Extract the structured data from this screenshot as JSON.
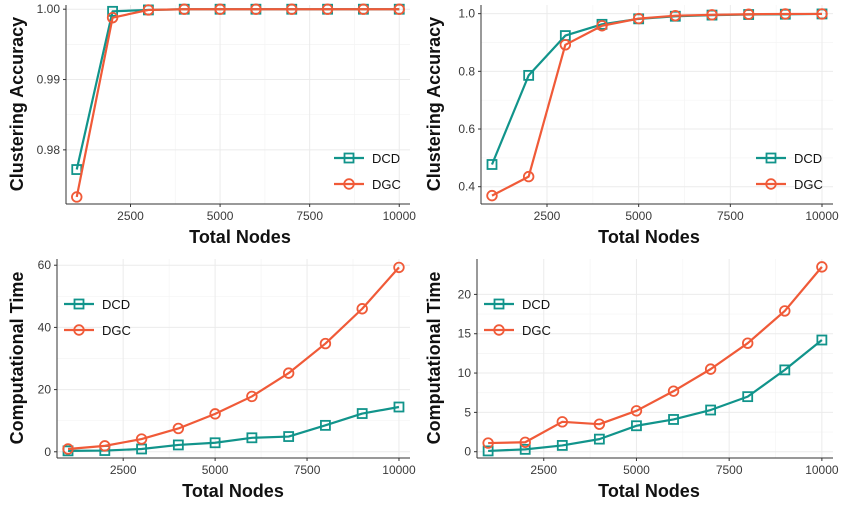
{
  "chart_data": [
    {
      "type": "line",
      "xlabel": "Total Nodes",
      "ylabel": "Clustering Accuracy",
      "x": [
        1000,
        2000,
        3000,
        4000,
        5000,
        6000,
        7000,
        8000,
        9000,
        10000
      ],
      "xticks": [
        "2500",
        "5000",
        "7500",
        "10000"
      ],
      "xlim": [
        700,
        10300
      ],
      "ylim": [
        0.9723,
        1.0006
      ],
      "yticks": [
        "0.98",
        "0.99",
        "1.00"
      ],
      "legend_position": "bottom-right",
      "series": [
        {
          "name": "DCD",
          "color": "#11948b",
          "marker": "square",
          "values": [
            0.9772,
            0.9997,
            0.9999,
            1.0,
            1.0,
            1.0,
            1.0,
            1.0,
            1.0,
            1.0
          ]
        },
        {
          "name": "DGC",
          "color": "#f05a38",
          "marker": "circle",
          "values": [
            0.9733,
            0.9988,
            0.9999,
            1.0,
            1.0,
            1.0,
            1.0,
            1.0,
            1.0,
            1.0
          ]
        }
      ]
    },
    {
      "type": "line",
      "xlabel": "Total Nodes",
      "ylabel": "Clustering Accuracy",
      "x": [
        1000,
        2000,
        3000,
        4000,
        5000,
        6000,
        7000,
        8000,
        9000,
        10000
      ],
      "xticks": [
        "2500",
        "5000",
        "7500",
        "10000"
      ],
      "xlim": [
        700,
        10300
      ],
      "ylim": [
        0.34,
        1.03
      ],
      "yticks": [
        "0.4",
        "0.6",
        "0.8",
        "1.0"
      ],
      "legend_position": "bottom-right",
      "series": [
        {
          "name": "DCD",
          "color": "#11948b",
          "marker": "square",
          "values": [
            0.477,
            0.786,
            0.924,
            0.963,
            0.982,
            0.991,
            0.995,
            0.997,
            0.998,
            0.999
          ]
        },
        {
          "name": "DGC",
          "color": "#f05a38",
          "marker": "circle",
          "values": [
            0.369,
            0.435,
            0.892,
            0.958,
            0.983,
            0.993,
            0.996,
            0.998,
            0.999,
            0.999
          ]
        }
      ]
    },
    {
      "type": "line",
      "xlabel": "Total Nodes",
      "ylabel": "Computational Time",
      "x": [
        1000,
        2000,
        3000,
        4000,
        5000,
        6000,
        7000,
        8000,
        9000,
        10000
      ],
      "xticks": [
        "2500",
        "5000",
        "7500",
        "10000"
      ],
      "xlim": [
        700,
        10300
      ],
      "ylim": [
        -2,
        62
      ],
      "yticks": [
        "0",
        "20",
        "40",
        "60"
      ],
      "legend_position": "top-left",
      "series": [
        {
          "name": "DCD",
          "color": "#11948b",
          "marker": "square",
          "values": [
            0.3,
            0.4,
            0.9,
            2.2,
            2.9,
            4.5,
            4.9,
            8.5,
            12.3,
            14.4
          ]
        },
        {
          "name": "DGC",
          "color": "#f05a38",
          "marker": "circle",
          "values": [
            0.9,
            1.9,
            4.1,
            7.5,
            12.2,
            17.8,
            25.3,
            34.8,
            46.0,
            59.3
          ]
        }
      ]
    },
    {
      "type": "line",
      "xlabel": "Total Nodes",
      "ylabel": "Computational Time",
      "x": [
        1000,
        2000,
        3000,
        4000,
        5000,
        6000,
        7000,
        8000,
        9000,
        10000
      ],
      "xticks": [
        "2500",
        "5000",
        "7500",
        "10000"
      ],
      "xlim": [
        700,
        10300
      ],
      "ylim": [
        -0.8,
        24.5
      ],
      "yticks": [
        "0",
        "5",
        "10",
        "15",
        "20"
      ],
      "legend_position": "top-left",
      "series": [
        {
          "name": "DCD",
          "color": "#11948b",
          "marker": "square",
          "values": [
            0.1,
            0.3,
            0.8,
            1.6,
            3.3,
            4.1,
            5.3,
            7.0,
            10.4,
            14.2
          ]
        },
        {
          "name": "DGC",
          "color": "#f05a38",
          "marker": "circle",
          "values": [
            1.1,
            1.2,
            3.8,
            3.5,
            5.2,
            7.7,
            10.5,
            13.8,
            17.9,
            23.5
          ]
        }
      ]
    }
  ]
}
